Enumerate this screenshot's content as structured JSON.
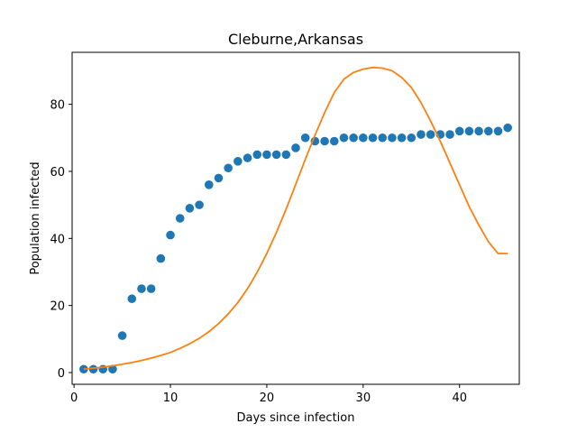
{
  "chart_data": {
    "type": "scatter",
    "title": "Cleburne,Arkansas",
    "xlabel": "Days since infection",
    "ylabel": "Population infected",
    "xlim": [
      -0.2,
      46.2
    ],
    "ylim": [
      -3.5,
      95.5
    ],
    "xticks": [
      0,
      10,
      20,
      30,
      40
    ],
    "yticks": [
      0,
      20,
      40,
      60,
      80
    ],
    "grid": false,
    "colors": {
      "points": "#1f77b4",
      "curve": "#ff7f0e"
    },
    "series": [
      {
        "kind": "scatter",
        "x": [
          1,
          2,
          3,
          4,
          5,
          6,
          7,
          8,
          9,
          10,
          11,
          12,
          13,
          14,
          15,
          16,
          17,
          18,
          19,
          20,
          21,
          22,
          23,
          24,
          25,
          26,
          27,
          28,
          29,
          30,
          31,
          32,
          33,
          34,
          35,
          36,
          37,
          38,
          39,
          40,
          41,
          42,
          43,
          44,
          45
        ],
        "y": [
          1,
          1,
          1,
          1,
          11,
          22,
          25,
          25,
          34,
          41,
          46,
          49,
          50,
          56,
          58,
          61,
          63,
          64,
          65,
          65,
          65,
          65,
          67,
          70,
          69,
          69,
          69,
          70,
          70,
          70,
          70,
          70,
          70,
          70,
          70,
          71,
          71,
          71,
          71,
          72,
          72,
          72,
          72,
          72,
          73
        ]
      },
      {
        "kind": "line",
        "x": [
          1,
          2,
          3,
          4,
          5,
          6,
          7,
          8,
          9,
          10,
          11,
          12,
          13,
          14,
          15,
          16,
          17,
          18,
          19,
          20,
          21,
          22,
          23,
          24,
          25,
          26,
          27,
          28,
          29,
          30,
          31,
          32,
          33,
          34,
          35,
          36,
          37,
          38,
          39,
          40,
          41,
          42,
          43,
          44,
          45
        ],
        "y": [
          1.0,
          1.3,
          1.6,
          2.0,
          2.5,
          3.0,
          3.6,
          4.3,
          5.1,
          6.0,
          7.2,
          8.6,
          10.2,
          12.2,
          14.6,
          17.5,
          20.9,
          25.0,
          29.9,
          35.5,
          41.8,
          48.7,
          56.1,
          63.6,
          70.8,
          77.5,
          83.5,
          87.5,
          89.5,
          90.5,
          91.0,
          90.8,
          90.0,
          88.0,
          85.0,
          80.5,
          75.0,
          69.0,
          62.5,
          56.0,
          49.5,
          44.0,
          39.0,
          35.5,
          35.5
        ]
      }
    ]
  }
}
